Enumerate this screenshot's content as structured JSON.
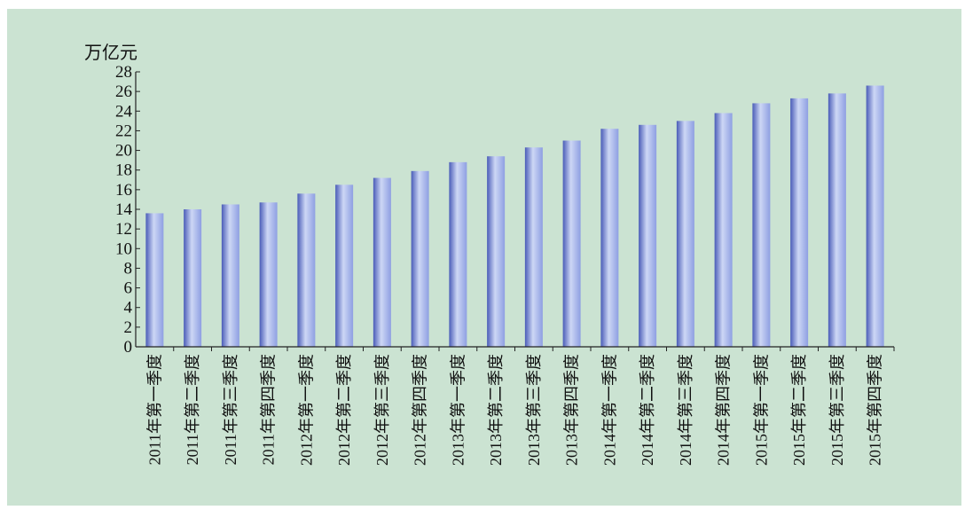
{
  "colors": {
    "background": "#cbe3d2",
    "bar_light": "#cdd7f5",
    "bar_mid": "#8e9fe2",
    "bar_dark": "#4a5cb8",
    "axis": "#222222"
  },
  "chart_data": {
    "type": "bar",
    "title": "",
    "xlabel": "",
    "ylabel": "万亿元",
    "ylim": [
      0,
      28
    ],
    "ytick_step": 2,
    "grid": false,
    "legend": "none",
    "categories": [
      "2011年第一季度",
      "2011年第二季度",
      "2011年第三季度",
      "2011年第四季度",
      "2012年第一季度",
      "2012年第二季度",
      "2012年第三季度",
      "2012年第四季度",
      "2013年第一季度",
      "2013年第二季度",
      "2013年第三季度",
      "2013年第四季度",
      "2014年第一季度",
      "2014年第二季度",
      "2014年第三季度",
      "2014年第四季度",
      "2015年第一季度",
      "2015年第二季度",
      "2015年第三季度",
      "2015年第四季度"
    ],
    "values": [
      13.6,
      14.0,
      14.5,
      14.7,
      15.6,
      16.5,
      17.2,
      17.9,
      18.8,
      19.4,
      20.3,
      21.0,
      22.2,
      22.6,
      23.0,
      23.8,
      24.8,
      25.3,
      25.8,
      26.6
    ]
  }
}
